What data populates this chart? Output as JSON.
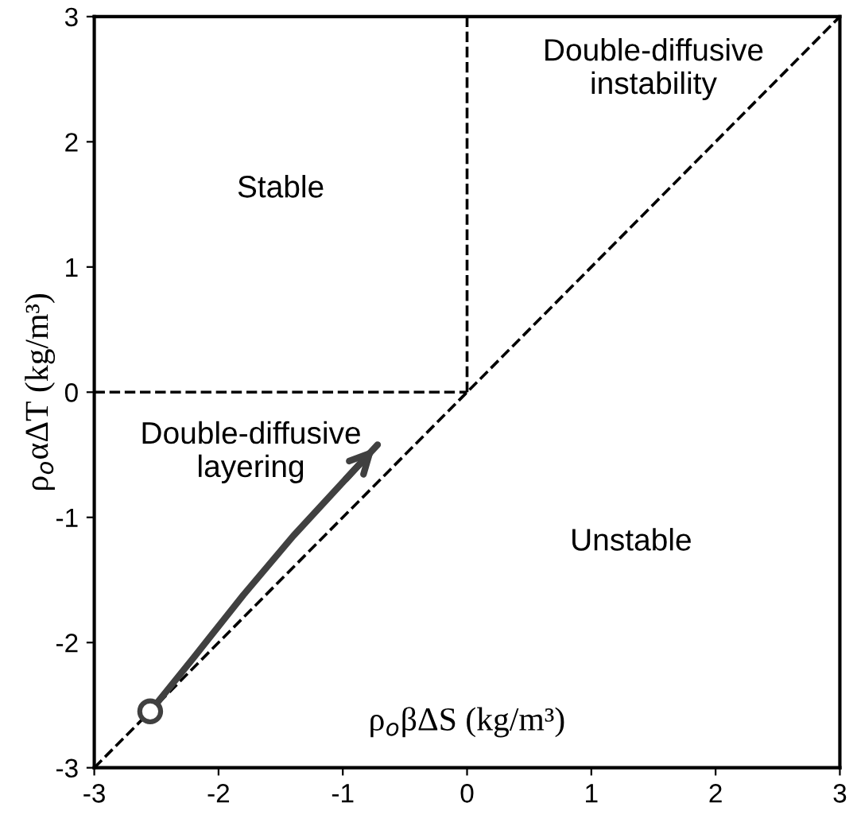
{
  "chart_data": {
    "type": "line",
    "xlabel": "ρ$_{o}$βΔS (kg/m³)",
    "ylabel": "ρ$_{o}$αΔT (kg/m³)",
    "xlim": [
      -3,
      3
    ],
    "ylim": [
      -3,
      3
    ],
    "xticks": [
      -3,
      -2,
      -1,
      0,
      1,
      2,
      3
    ],
    "yticks": [
      -3,
      -2,
      -1,
      0,
      1,
      2,
      3
    ],
    "grid": false,
    "series": [
      {
        "x": [
          -3,
          3
        ],
        "values": [
          -3,
          3
        ],
        "color": "#000000",
        "line_style": "dashed",
        "marker": "none"
      },
      {
        "x": [
          0,
          0
        ],
        "values": [
          0,
          3
        ],
        "color": "#000000",
        "line_style": "dashed",
        "marker": "none"
      },
      {
        "x": [
          -3,
          0
        ],
        "values": [
          0,
          0
        ],
        "color": "#000000",
        "line_style": "dashed",
        "marker": "none"
      },
      {
        "x": [
          -2.55,
          -2.2,
          -1.8,
          -1.4,
          -1.0,
          -0.72
        ],
        "values": [
          -2.55,
          -2.12,
          -1.62,
          -1.15,
          -0.72,
          -0.42
        ],
        "color": "#404040",
        "line_style": "solid",
        "marker": "none"
      },
      {
        "type": "scatter",
        "x": [
          -2.55
        ],
        "values": [
          -2.55
        ],
        "color": "#404040",
        "marker": "circle"
      }
    ],
    "annotations": [
      "Stable",
      "Double-diffusive\ninstability",
      "Double-diffusive\nlayering",
      "Unstable"
    ]
  }
}
